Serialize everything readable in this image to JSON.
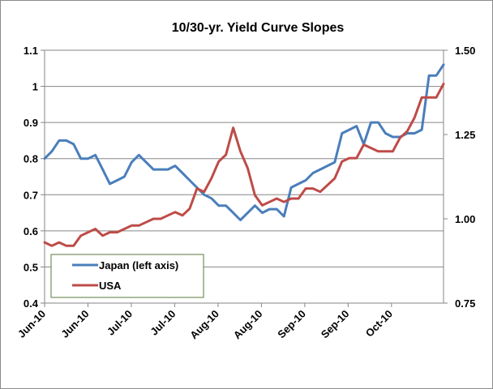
{
  "chart_data": {
    "type": "line",
    "title": "10/30-yr. Yield Curve Slopes",
    "x_tick_labels": [
      "Jun-10",
      "Jun-10",
      "Jul-10",
      "Jul-10",
      "Aug-10",
      "Aug-10",
      "Sep-10",
      "Sep-10",
      "Oct-10"
    ],
    "y_left": {
      "ylim": [
        0.4,
        1.1
      ],
      "ticks": [
        "0.4",
        "0.5",
        "0.6",
        "0.7",
        "0.8",
        "0.9",
        "1",
        "1.1"
      ]
    },
    "y_right": {
      "ylim": [
        0.75,
        1.5
      ],
      "ticks": [
        "0.75",
        "1.00",
        "1.25",
        "1.50"
      ]
    },
    "x_range": [
      0,
      110
    ],
    "grid": "horizontal",
    "legend_placement": "bottom-left",
    "series": [
      {
        "name": "Japan (left axis)",
        "axis": "left",
        "color": "#4a7ebb",
        "x": [
          0,
          2,
          4,
          6,
          8,
          10,
          12,
          14,
          16,
          18,
          20,
          22,
          24,
          26,
          28,
          30,
          32,
          34,
          36,
          38,
          40,
          42,
          44,
          46,
          48,
          50,
          52,
          54,
          56,
          58,
          60,
          62,
          64,
          66,
          68,
          70,
          72,
          74,
          76,
          78,
          80,
          82,
          84,
          86,
          88,
          90,
          92,
          94,
          96,
          98,
          100,
          102,
          104,
          106,
          108,
          110
        ],
        "values": [
          0.8,
          0.82,
          0.85,
          0.85,
          0.84,
          0.8,
          0.8,
          0.81,
          0.77,
          0.73,
          0.74,
          0.75,
          0.79,
          0.81,
          0.79,
          0.77,
          0.77,
          0.77,
          0.78,
          0.76,
          0.74,
          0.72,
          0.7,
          0.69,
          0.67,
          0.67,
          0.65,
          0.63,
          0.65,
          0.67,
          0.65,
          0.66,
          0.66,
          0.64,
          0.72,
          0.73,
          0.74,
          0.76,
          0.77,
          0.78,
          0.79,
          0.87,
          0.88,
          0.89,
          0.84,
          0.9,
          0.9,
          0.87,
          0.86,
          0.86,
          0.87,
          0.87,
          0.88,
          1.03,
          1.03,
          1.06
        ]
      },
      {
        "name": "USA",
        "axis": "right",
        "color": "#be4b48",
        "x": [
          0,
          2,
          4,
          6,
          8,
          10,
          12,
          14,
          16,
          18,
          20,
          22,
          24,
          26,
          28,
          30,
          32,
          34,
          36,
          38,
          40,
          42,
          44,
          46,
          48,
          50,
          52,
          54,
          56,
          58,
          60,
          62,
          64,
          66,
          68,
          70,
          72,
          74,
          76,
          78,
          80,
          82,
          84,
          86,
          88,
          90,
          92,
          94,
          96,
          98,
          100,
          102,
          104,
          106,
          108,
          110
        ],
        "values": [
          0.93,
          0.92,
          0.93,
          0.92,
          0.92,
          0.95,
          0.96,
          0.97,
          0.95,
          0.96,
          0.96,
          0.97,
          0.98,
          0.98,
          0.99,
          1.0,
          1.0,
          1.01,
          1.02,
          1.01,
          1.03,
          1.09,
          1.08,
          1.12,
          1.17,
          1.19,
          1.27,
          1.2,
          1.15,
          1.07,
          1.04,
          1.05,
          1.06,
          1.05,
          1.06,
          1.06,
          1.09,
          1.09,
          1.08,
          1.1,
          1.12,
          1.17,
          1.18,
          1.18,
          1.22,
          1.21,
          1.2,
          1.2,
          1.2,
          1.24,
          1.26,
          1.3,
          1.36,
          1.36,
          1.36,
          1.4
        ]
      }
    ]
  }
}
